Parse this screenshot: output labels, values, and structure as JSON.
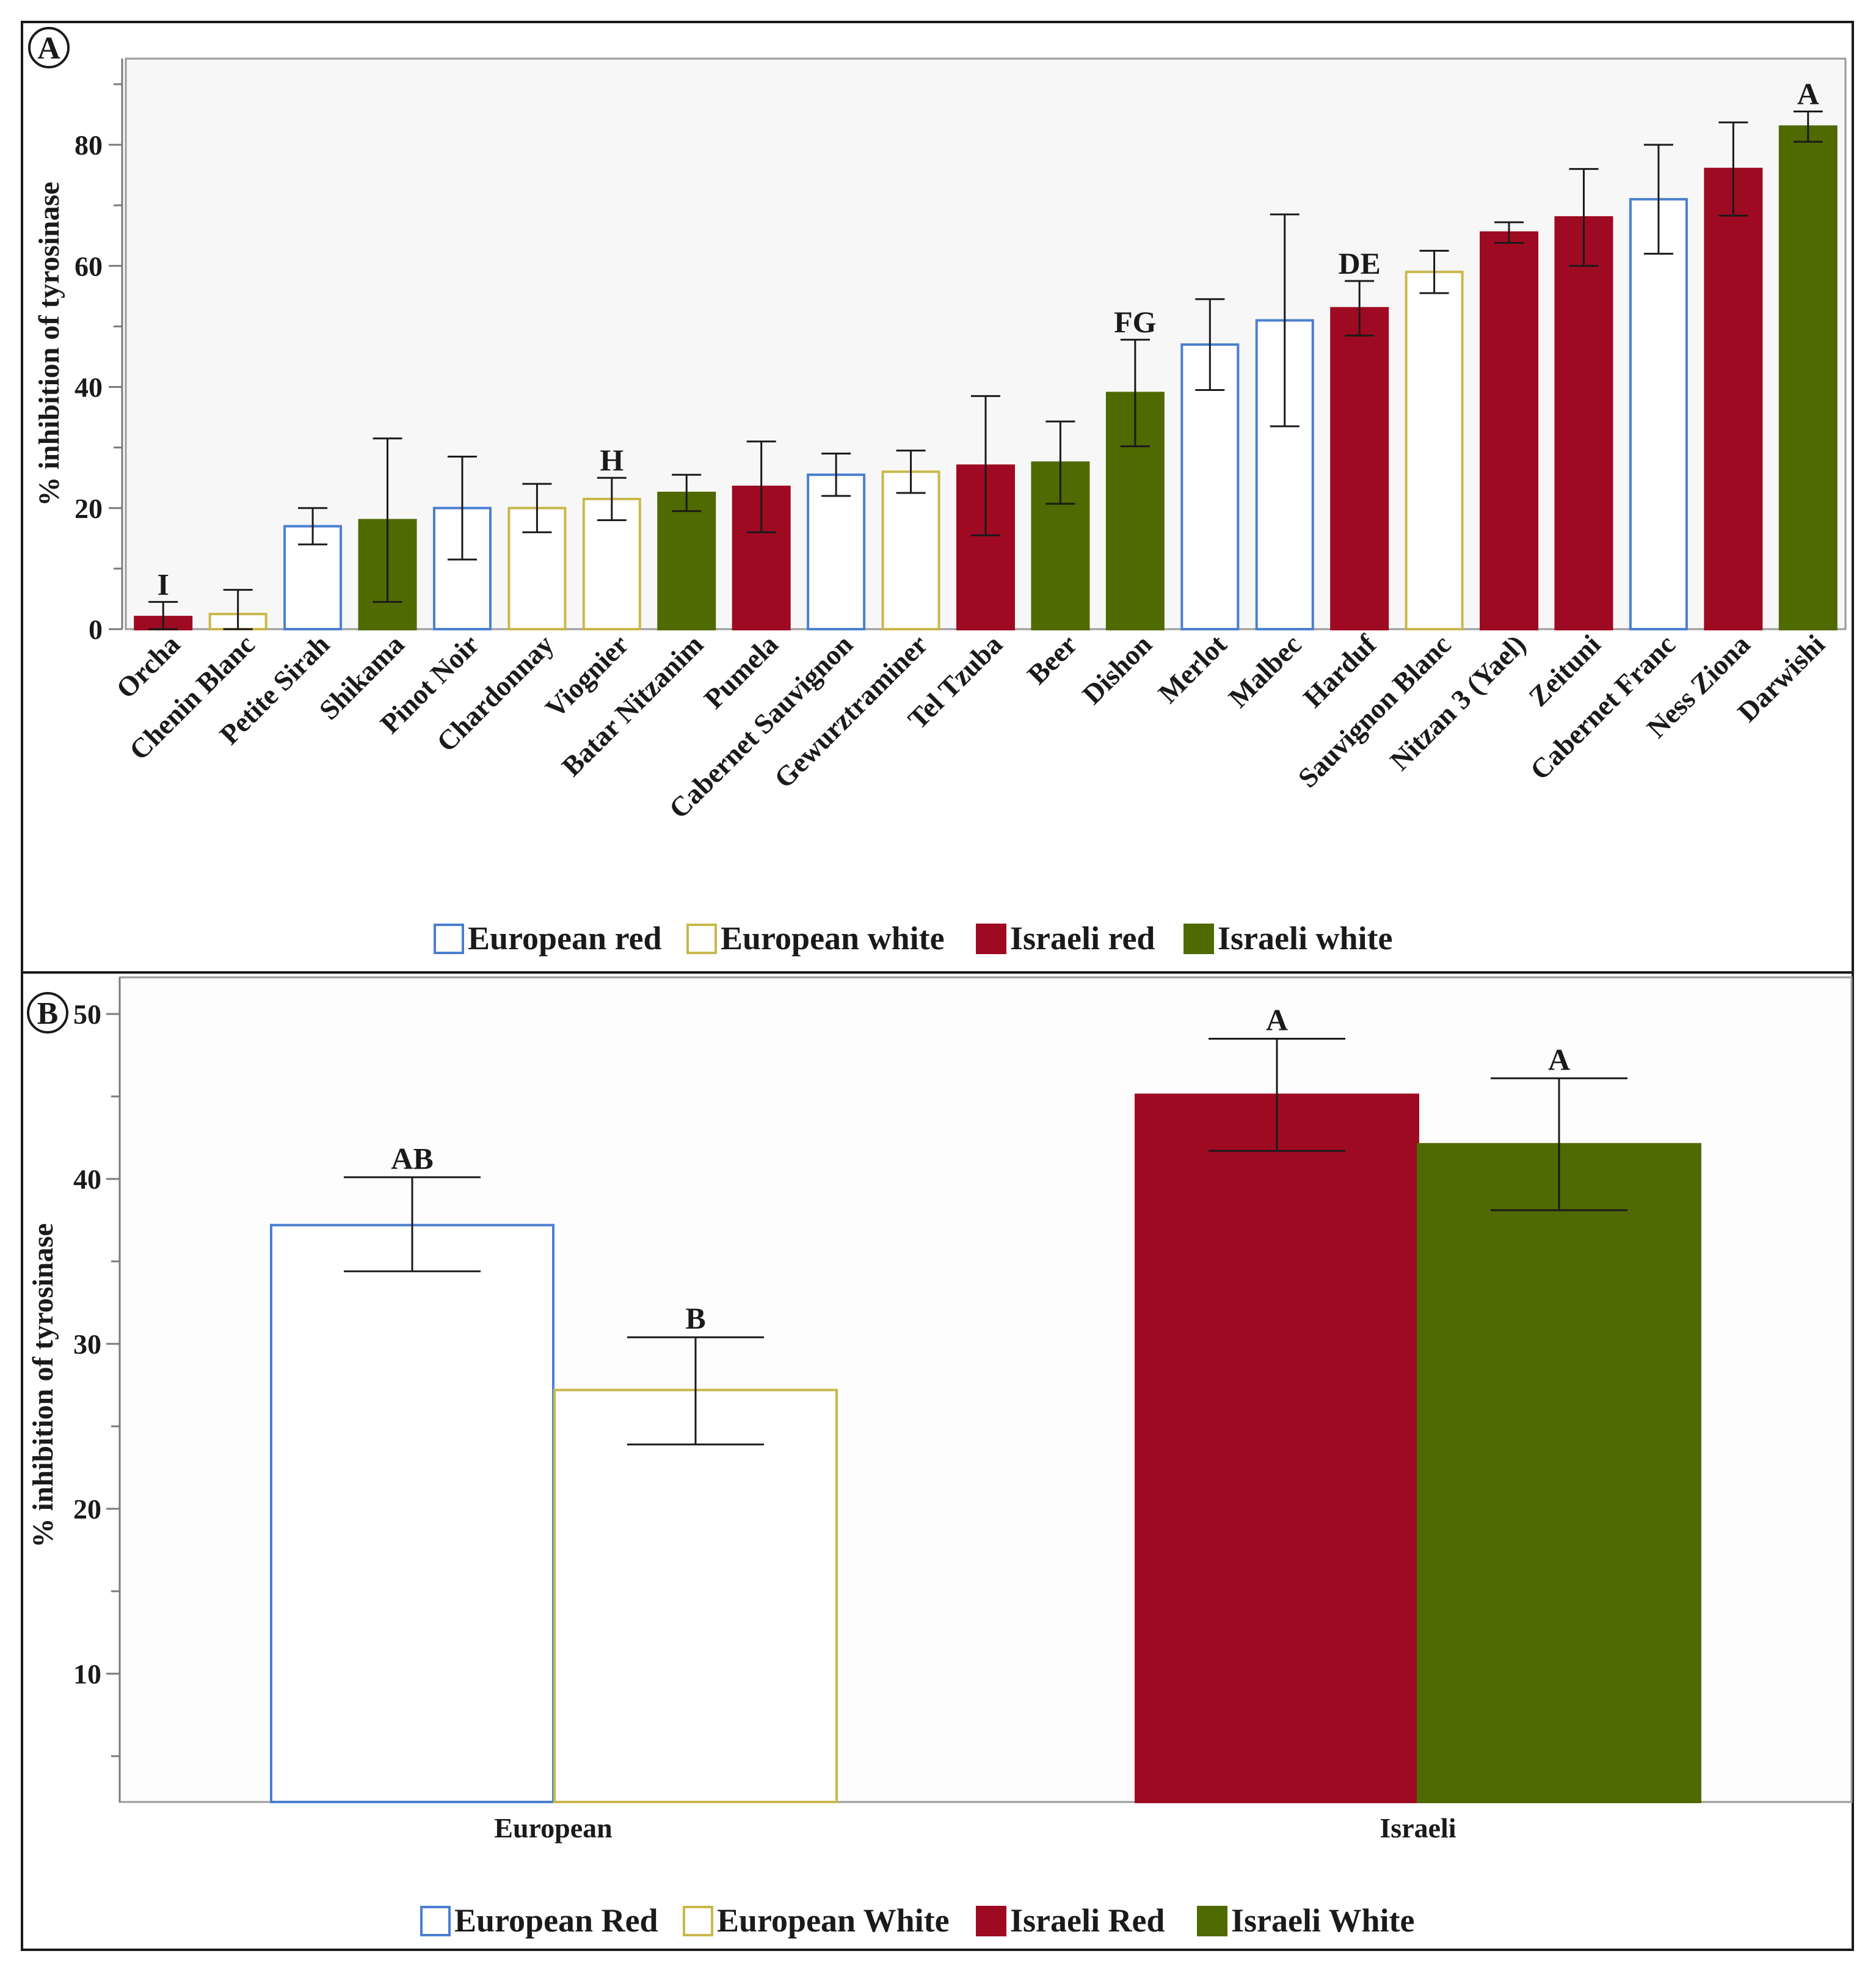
{
  "colors": {
    "european_red": "#4a7fd1",
    "european_white": "#c8b84a",
    "israeli_red": "#9e0a22",
    "israeli_white": "#4e6a00",
    "error_bar": "#1a1a1a"
  },
  "chart_data": [
    {
      "panel_label": "A",
      "type": "bar",
      "title": "",
      "xlabel": "",
      "ylabel": "% inhibition of tyrosinase",
      "ylim": [
        0,
        95
      ],
      "yticks": [
        0,
        20,
        40,
        60,
        80
      ],
      "categories": [
        "Orcha",
        "Chenin Blanc",
        "Petite Sirah",
        "Shikama",
        "Pinot Noir",
        "Chardonnay",
        "Viognier",
        "Batar Nitzanim",
        "Pumela",
        "Cabernet Sauvignon",
        "Gewurztraminer",
        "Tel Tzuba",
        "Beer",
        "Dishon",
        "Merlot",
        "Malbec",
        "Harduf",
        "Sauvignon Blanc",
        "Nitzan 3 (Yael)",
        "Zeituni",
        "Cabernet Franc",
        "Ness Ziona",
        "Darwishi"
      ],
      "groups": [
        "israeli_red",
        "european_white",
        "european_red",
        "israeli_white",
        "european_red",
        "european_white",
        "european_white",
        "israeli_white",
        "israeli_red",
        "european_red",
        "european_white",
        "israeli_red",
        "israeli_white",
        "israeli_white",
        "european_red",
        "european_red",
        "israeli_red",
        "european_white",
        "israeli_red",
        "israeli_red",
        "european_red",
        "israeli_red",
        "israeli_white"
      ],
      "values": [
        2,
        2.5,
        17,
        18,
        20,
        20,
        21.5,
        22.5,
        23.5,
        25.5,
        26,
        27,
        27.5,
        39,
        47,
        51,
        53,
        59,
        65.5,
        68,
        71,
        76,
        83
      ],
      "errors": [
        2.5,
        4,
        3,
        13.5,
        8.5,
        4,
        3.5,
        3,
        7.5,
        3.5,
        3.5,
        11.5,
        6.8,
        8.8,
        7.5,
        17.5,
        4.5,
        3.5,
        1.7,
        8,
        9,
        7.7,
        2.5
      ],
      "annotations": [
        {
          "category": "Orcha",
          "text": "I"
        },
        {
          "category": "Viognier",
          "text": "H"
        },
        {
          "category": "Dishon",
          "text": "FG"
        },
        {
          "category": "Harduf",
          "text": "DE"
        },
        {
          "category": "Darwishi",
          "text": "A"
        }
      ],
      "legend": {
        "position": "bottom",
        "entries": [
          {
            "key": "european_red",
            "label": "European red"
          },
          {
            "key": "european_white",
            "label": "European white"
          },
          {
            "key": "israeli_red",
            "label": "Israeli red"
          },
          {
            "key": "israeli_white",
            "label": "Israeli white"
          }
        ]
      }
    },
    {
      "panel_label": "B",
      "type": "bar",
      "title": "",
      "xlabel": "",
      "ylabel": "% inhibition of tyrosinase",
      "ylim": [
        2.2,
        52.5
      ],
      "yticks": [
        10,
        20,
        30,
        40,
        50
      ],
      "categories": [
        "European",
        "Israeli"
      ],
      "series": [
        {
          "key": "european_red",
          "name": "European Red",
          "category": "European",
          "value": 37.2,
          "err_low": 34.4,
          "err_high": 40.1,
          "annotation": "AB"
        },
        {
          "key": "european_white",
          "name": "European White",
          "category": "European",
          "value": 27.2,
          "err_low": 23.9,
          "err_high": 30.4,
          "annotation": "B"
        },
        {
          "key": "israeli_red",
          "name": "Israeli Red",
          "category": "Israeli",
          "value": 45.1,
          "err_low": 41.7,
          "err_high": 48.5,
          "annotation": "A"
        },
        {
          "key": "israeli_white",
          "name": "Israeli White",
          "category": "Israeli",
          "value": 42.1,
          "err_low": 38.1,
          "err_high": 46.1,
          "annotation": "A"
        }
      ],
      "legend": {
        "position": "bottom",
        "entries": [
          {
            "key": "european_red",
            "label": "European Red"
          },
          {
            "key": "european_white",
            "label": "European White"
          },
          {
            "key": "israeli_red",
            "label": "Israeli Red"
          },
          {
            "key": "israeli_white",
            "label": "Israeli White"
          }
        ]
      }
    }
  ]
}
